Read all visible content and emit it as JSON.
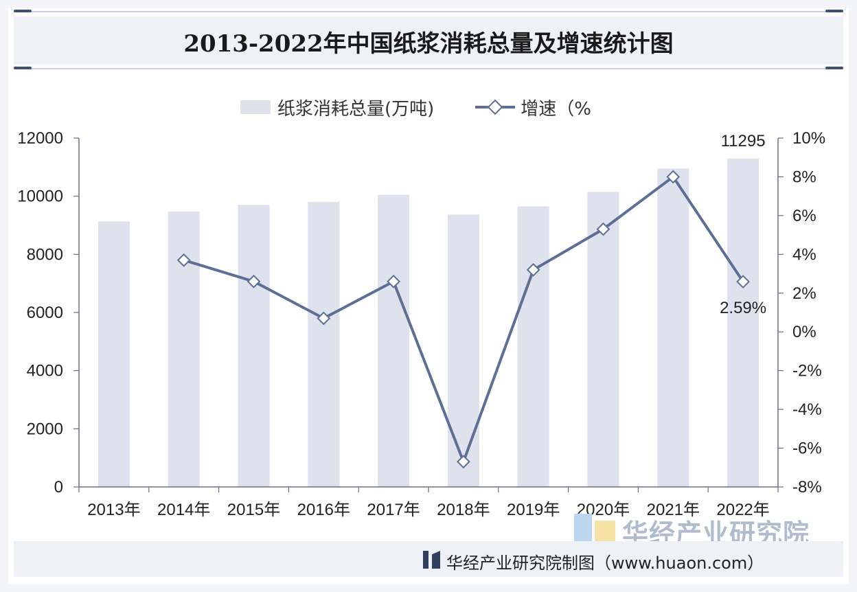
{
  "title": "2013-2022年中国纸浆消耗总量及增速统计图",
  "legend": {
    "bar_label": "纸浆消耗总量(万吨)",
    "line_label": "增速（%"
  },
  "footer": {
    "source": "华经产业研究院制图（www.huaon.com）",
    "brand": "华经产业研究院"
  },
  "colors": {
    "bar": "#dde2ec",
    "line": "#5d6f95",
    "axis": "#6b6b8a",
    "text": "#222222"
  },
  "chart_data": {
    "type": "bar",
    "categories": [
      "2013年",
      "2014年",
      "2015年",
      "2016年",
      "2017年",
      "2018年",
      "2019年",
      "2020年",
      "2021年",
      "2022年"
    ],
    "series": [
      {
        "name": "纸浆消耗总量(万吨)",
        "type": "bar",
        "axis": "left",
        "values": [
          9130,
          9470,
          9700,
          9800,
          10050,
          9370,
          9650,
          10150,
          10950,
          11295
        ]
      },
      {
        "name": "增速（%",
        "type": "line",
        "axis": "right",
        "values": [
          null,
          3.7,
          2.6,
          0.7,
          2.6,
          -6.7,
          3.2,
          5.3,
          8.0,
          2.59
        ]
      }
    ],
    "data_labels": [
      {
        "series": 0,
        "index": 9,
        "text": "11295"
      },
      {
        "series": 1,
        "index": 9,
        "text": "2.59%"
      }
    ],
    "left_axis": {
      "ylim": [
        0,
        12000
      ],
      "ticks": [
        "0",
        "2000",
        "4000",
        "6000",
        "8000",
        "10000",
        "12000"
      ]
    },
    "right_axis": {
      "ylim": [
        -8,
        10
      ],
      "ticks": [
        "-8%",
        "-6%",
        "-4%",
        "-2%",
        "0%",
        "2%",
        "4%",
        "6%",
        "8%",
        "10%"
      ]
    },
    "legend_position": "top"
  }
}
